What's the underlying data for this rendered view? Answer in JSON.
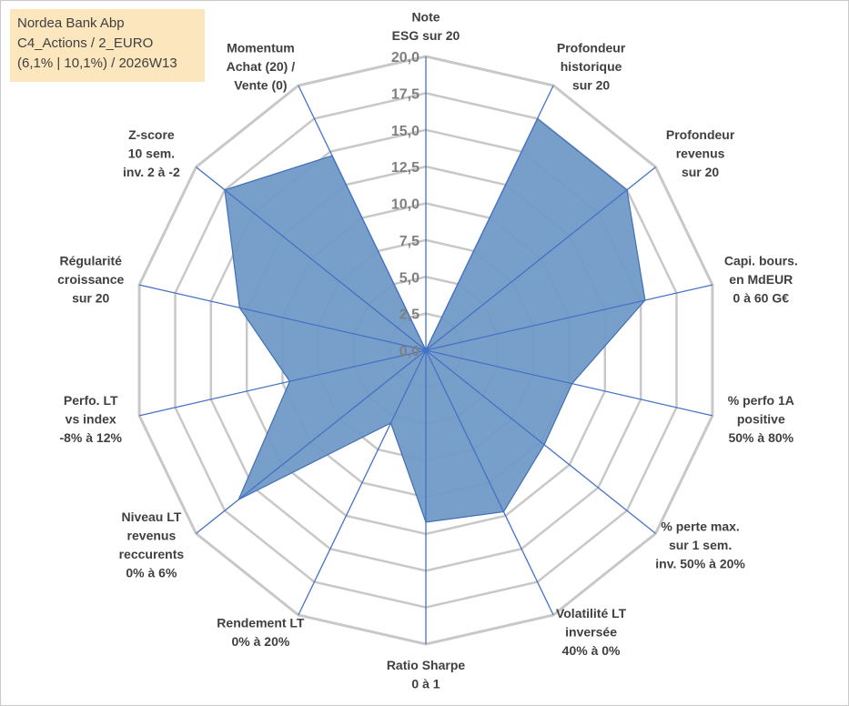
{
  "header": {
    "lines": [
      "Nordea Bank Abp",
      "C4_Actions / 2_EURO",
      "(6,1% | 10,1%) / 2026W13"
    ]
  },
  "chart_data": {
    "type": "radar",
    "title": "",
    "range": [
      0,
      20
    ],
    "tick_values": [
      0,
      2.5,
      5,
      7.5,
      10,
      12.5,
      15,
      17.5,
      20
    ],
    "tick_labels": [
      "0,0",
      "2,5",
      "5,0",
      "7,5",
      "10,0",
      "12,5",
      "15,0",
      "17,5",
      "20,0"
    ],
    "grid": true,
    "axes": [
      {
        "label": [
          "Note",
          "ESG sur 20"
        ]
      },
      {
        "label": [
          "Profondeur",
          "historique",
          "sur 20"
        ]
      },
      {
        "label": [
          "Profondeur",
          "revenus",
          "sur 20"
        ]
      },
      {
        "label": [
          "Capi. bours.",
          "en MdEUR",
          "0 à 60 G€"
        ]
      },
      {
        "label": [
          "% perfo 1A",
          "positive",
          "50% à 80%"
        ]
      },
      {
        "label": [
          "% perte max.",
          "sur 1 sem.",
          "inv. 50% à 20%"
        ]
      },
      {
        "label": [
          "Volatilité LT",
          "inversée",
          "40% à 0%"
        ]
      },
      {
        "label": [
          "Ratio Sharpe",
          "0 à 1"
        ]
      },
      {
        "label": [
          "Rendement LT",
          "0% à 20%"
        ]
      },
      {
        "label": [
          "Niveau LT",
          "revenus",
          "reccurents",
          "0% à 6%"
        ]
      },
      {
        "label": [
          "Perfo. LT",
          "vs index",
          "-8% à 12%"
        ]
      },
      {
        "label": [
          "Régularité",
          "croissance",
          "sur 20"
        ]
      },
      {
        "label": [
          "Z-score",
          "10 sem.",
          "inv. 2 à -2"
        ]
      },
      {
        "label": [
          "Momentum",
          "Achat (20) /",
          "Vente (0)"
        ]
      }
    ],
    "series": [
      {
        "values": [
          0,
          17.5,
          17.5,
          15.3,
          10.2,
          10.3,
          12.2,
          11.7,
          5.5,
          16.3,
          9.5,
          13.0,
          17.5,
          14.7
        ],
        "color": "#5b82b4"
      }
    ],
    "colors": {
      "fill": "#7199c7",
      "stroke": "#3f6fb5",
      "spoke": "#4472c4",
      "grid": "#c8c8c8",
      "title_bg": "#fbe6bd"
    }
  }
}
